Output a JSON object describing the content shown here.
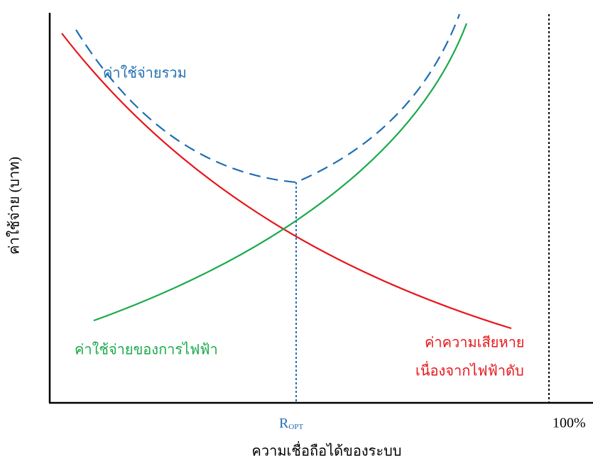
{
  "axes": {
    "y_label": "ค่าใช้จ่าย (บาท)",
    "x_label": "ความเชื่อถือได้ของระบบ",
    "x_marks": {
      "optimum": {
        "main": "R",
        "sub": "OPT"
      },
      "max": "100%"
    }
  },
  "curves": {
    "total": "ค่าใช้จ่ายรวม",
    "utility": "ค่าใช้จ่ายของการไฟฟ้า",
    "outage": [
      "ค่าความเสียหาย",
      "เนื่องจากไฟฟ้าดับ"
    ]
  }
}
